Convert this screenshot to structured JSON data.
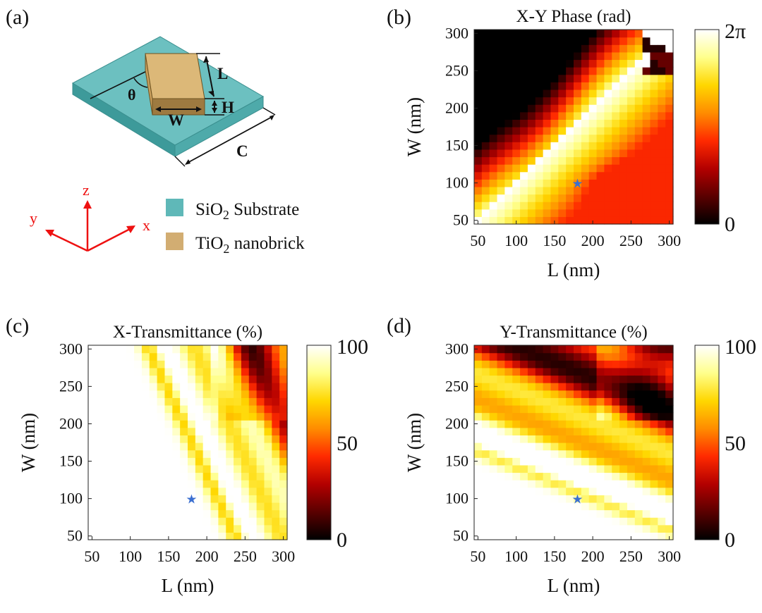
{
  "panel_labels": {
    "a": "(a)",
    "b": "(b)",
    "c": "(c)",
    "d": "(d)"
  },
  "schematic": {
    "dim_L": "L",
    "dim_W": "W",
    "dim_H": "H",
    "dim_C": "C",
    "angle": "θ",
    "axis_x": "x",
    "axis_y": "y",
    "axis_z": "z",
    "legend": [
      {
        "prefix": "SiO",
        "sub": "2",
        "suffix": " Substrate",
        "color": "#5fb8b8"
      },
      {
        "prefix": "TiO",
        "sub": "2",
        "suffix": " nanobrick",
        "color": "#d2ad72"
      }
    ],
    "colors": {
      "substrate_top": "#6cc0c0",
      "substrate_front": "#3d9a9a",
      "substrate_side": "#4eaaaa",
      "brick_top": "#dcb878",
      "brick_front": "#c89e5c",
      "brick_side": "#9e7a40",
      "axes": "#e11"
    }
  },
  "colormap_stops": [
    "#000000",
    "#5a0000",
    "#b30000",
    "#ff2a00",
    "#ff8c00",
    "#ffd700",
    "#ffff8c",
    "#ffffff"
  ],
  "marker_color": "#3b6fd0",
  "chart_data": [
    {
      "id": "b",
      "type": "heatmap",
      "title": "X-Y Phase (rad)",
      "xlabel": "L (nm)",
      "ylabel": "W (nm)",
      "x_ticks": [
        "50",
        "100",
        "150",
        "200",
        "250",
        "300"
      ],
      "y_ticks": [
        "50",
        "100",
        "150",
        "200",
        "250",
        "300"
      ],
      "xlim": [
        50,
        300
      ],
      "ylim": [
        50,
        300
      ],
      "grid_step": 10,
      "colorbar_labels": {
        "max": "2π",
        "min": "0"
      },
      "marker": {
        "L": 180,
        "W": 100,
        "symbol": "★"
      }
    },
    {
      "id": "c",
      "type": "heatmap",
      "title": "X-Transmittance (%)",
      "xlabel": "L (nm)",
      "ylabel": "W (nm)",
      "x_ticks": [
        "50",
        "100",
        "150",
        "200",
        "250",
        "300"
      ],
      "y_ticks": [
        "50",
        "100",
        "150",
        "200",
        "250",
        "300"
      ],
      "xlim": [
        50,
        300
      ],
      "ylim": [
        50,
        300
      ],
      "grid_step": 10,
      "colorbar_labels": {
        "max": "100",
        "mid": "50",
        "min": "0"
      },
      "marker": {
        "L": 180,
        "W": 100,
        "symbol": "★"
      }
    },
    {
      "id": "d",
      "type": "heatmap",
      "title": "Y-Transmittance (%)",
      "xlabel": "L (nm)",
      "ylabel": "W (nm)",
      "x_ticks": [
        "50",
        "100",
        "150",
        "200",
        "250",
        "300"
      ],
      "y_ticks": [
        "50",
        "100",
        "150",
        "200",
        "250",
        "300"
      ],
      "xlim": [
        50,
        300
      ],
      "ylim": [
        50,
        300
      ],
      "grid_step": 10,
      "colorbar_labels": {
        "max": "100",
        "mid": "50",
        "min": "0"
      },
      "marker": {
        "L": 180,
        "W": 100,
        "symbol": "★"
      }
    }
  ]
}
